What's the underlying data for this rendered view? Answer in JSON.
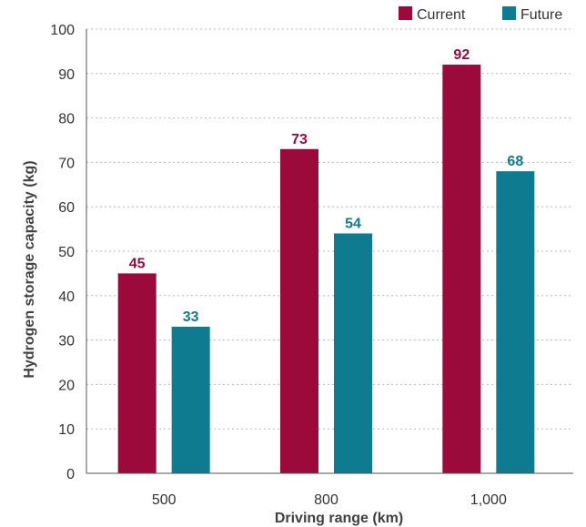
{
  "chart_data": {
    "type": "bar",
    "categories": [
      "500",
      "800",
      "1,000"
    ],
    "series": [
      {
        "name": "Current",
        "color": "#9b0a3a",
        "values": [
          45,
          73,
          92
        ]
      },
      {
        "name": "Future",
        "color": "#0f7b91",
        "values": [
          33,
          54,
          68
        ]
      }
    ],
    "xlabel": "Driving range (km)",
    "ylabel": "Hydrogen storage capacity (kg)",
    "ylim": [
      0,
      100
    ],
    "yticks": [
      0,
      10,
      20,
      30,
      40,
      50,
      60,
      70,
      80,
      90,
      100
    ],
    "grid": true,
    "legend_position": "top-right"
  }
}
